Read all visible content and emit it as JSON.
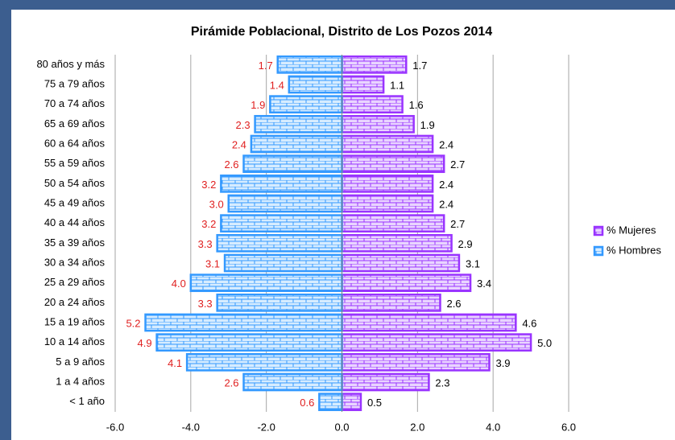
{
  "chart_data": {
    "type": "pyramid",
    "title": "Pirámide Poblacional, Distrito de Los Pozos 2014",
    "categories": [
      "80 años y más",
      "75 a 79 años",
      "70 a 74 años",
      "65 a 69 años",
      "60 a 64 años",
      "55 a 59 años",
      "50 a 54 años",
      "45 a 49 años",
      "40 a 44 años",
      "35 a 39 años",
      "30 a 34 años",
      "25 a 29 años",
      "20 a 24 años",
      "15 a 19 años",
      "10 a 14 años",
      "5 a 9 años",
      "1 a 4 años",
      "< 1 año"
    ],
    "series": [
      {
        "name": "% Mujeres",
        "color": "#9933ff",
        "label_color": "#000000",
        "values": [
          1.7,
          1.1,
          1.6,
          1.9,
          2.4,
          2.7,
          2.4,
          2.4,
          2.7,
          2.9,
          3.1,
          3.4,
          2.6,
          4.6,
          5.0,
          3.9,
          2.3,
          0.5
        ],
        "value_labels": [
          "1.7",
          "1.1",
          "1.6",
          "1.9",
          "2.4",
          "2.7",
          "2.4",
          "2.4",
          "2.7",
          "2.9",
          "3.1",
          "3.4",
          "2.6",
          "4.6",
          "5.0",
          "3.9",
          "2.3",
          "0.5"
        ]
      },
      {
        "name": "% Hombres",
        "color": "#3399ff",
        "label_color": "#e02020",
        "values": [
          -1.7,
          -1.4,
          -1.9,
          -2.3,
          -2.4,
          -2.6,
          -3.2,
          -3.0,
          -3.2,
          -3.3,
          -3.1,
          -4.0,
          -3.3,
          -5.2,
          -4.9,
          -4.1,
          -2.6,
          -0.6
        ],
        "value_labels": [
          "1.7",
          "1.4",
          "1.9",
          "2.3",
          "2.4",
          "2.6",
          "3.2",
          "3.0",
          "3.2",
          "3.3",
          "3.1",
          "4.0",
          "3.3",
          "5.2",
          "4.9",
          "4.1",
          "2.6",
          "0.6"
        ]
      }
    ],
    "xlim": [
      -6,
      6
    ],
    "xticks": [
      {
        "value": -6,
        "label": "-6.0"
      },
      {
        "value": -4,
        "label": "-4.0"
      },
      {
        "value": -2,
        "label": "-2.0"
      },
      {
        "value": 0,
        "label": "0.0"
      },
      {
        "value": 2,
        "label": "2.0"
      },
      {
        "value": 4,
        "label": "4.0"
      },
      {
        "value": 6,
        "label": "6.0"
      }
    ],
    "grid": true,
    "legend": "right"
  }
}
